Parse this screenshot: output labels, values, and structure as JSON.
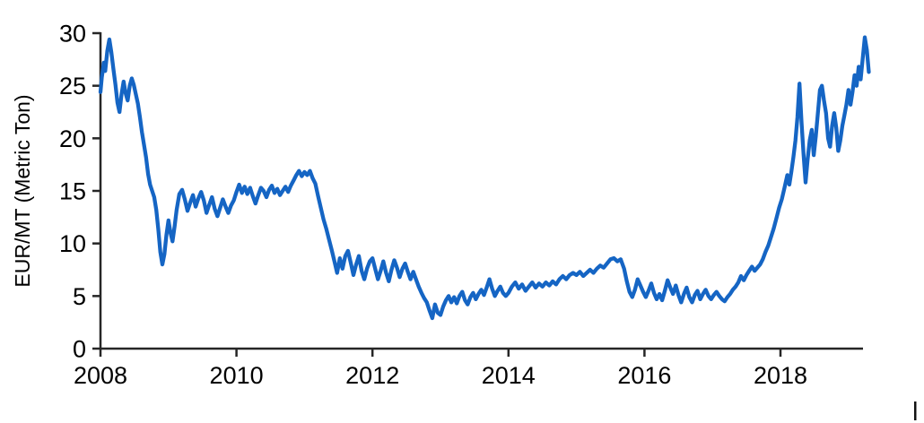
{
  "chart_data": {
    "type": "line",
    "title": "",
    "xlabel": "",
    "ylabel": "EUR/MT (Metric Ton)",
    "x_ticks": [
      2008,
      2010,
      2012,
      2014,
      2016,
      2018
    ],
    "y_ticks": [
      0,
      5,
      10,
      15,
      20,
      25,
      30
    ],
    "xlim": [
      2008,
      2019.35
    ],
    "ylim": [
      0,
      30
    ],
    "grid": false,
    "legend_position": "none",
    "axis_color": "#262626",
    "tick_label_color": "#000000",
    "series": [
      {
        "name": "EUR/MT price",
        "color": "#1565c4",
        "points": [
          [
            2008.0,
            24.4
          ],
          [
            2008.02,
            25.8
          ],
          [
            2008.05,
            27.2
          ],
          [
            2008.07,
            26.4
          ],
          [
            2008.1,
            28.3
          ],
          [
            2008.13,
            29.4
          ],
          [
            2008.16,
            28.2
          ],
          [
            2008.19,
            26.6
          ],
          [
            2008.22,
            25.1
          ],
          [
            2008.25,
            23.4
          ],
          [
            2008.28,
            22.5
          ],
          [
            2008.31,
            24.2
          ],
          [
            2008.34,
            25.4
          ],
          [
            2008.37,
            24.3
          ],
          [
            2008.4,
            23.6
          ],
          [
            2008.43,
            25.0
          ],
          [
            2008.46,
            25.7
          ],
          [
            2008.49,
            25.1
          ],
          [
            2008.52,
            24.2
          ],
          [
            2008.55,
            23.3
          ],
          [
            2008.58,
            22.0
          ],
          [
            2008.61,
            20.6
          ],
          [
            2008.64,
            19.4
          ],
          [
            2008.67,
            18.2
          ],
          [
            2008.7,
            16.6
          ],
          [
            2008.73,
            15.6
          ],
          [
            2008.76,
            15.0
          ],
          [
            2008.79,
            14.4
          ],
          [
            2008.82,
            13.2
          ],
          [
            2008.85,
            11.4
          ],
          [
            2008.88,
            9.2
          ],
          [
            2008.91,
            8.0
          ],
          [
            2008.94,
            9.0
          ],
          [
            2008.97,
            10.8
          ],
          [
            2009.0,
            12.2
          ],
          [
            2009.03,
            11.0
          ],
          [
            2009.06,
            10.2
          ],
          [
            2009.09,
            11.6
          ],
          [
            2009.12,
            13.2
          ],
          [
            2009.16,
            14.7
          ],
          [
            2009.2,
            15.1
          ],
          [
            2009.24,
            14.2
          ],
          [
            2009.28,
            13.1
          ],
          [
            2009.32,
            13.9
          ],
          [
            2009.36,
            14.6
          ],
          [
            2009.4,
            13.5
          ],
          [
            2009.44,
            14.3
          ],
          [
            2009.48,
            14.9
          ],
          [
            2009.52,
            14.1
          ],
          [
            2009.56,
            12.9
          ],
          [
            2009.6,
            13.7
          ],
          [
            2009.64,
            14.4
          ],
          [
            2009.68,
            13.3
          ],
          [
            2009.72,
            12.6
          ],
          [
            2009.76,
            13.4
          ],
          [
            2009.8,
            14.2
          ],
          [
            2009.84,
            13.5
          ],
          [
            2009.88,
            12.9
          ],
          [
            2009.92,
            13.6
          ],
          [
            2009.96,
            14.1
          ],
          [
            2010.0,
            14.9
          ],
          [
            2010.04,
            15.6
          ],
          [
            2010.08,
            14.8
          ],
          [
            2010.12,
            15.4
          ],
          [
            2010.16,
            14.7
          ],
          [
            2010.2,
            15.3
          ],
          [
            2010.24,
            14.5
          ],
          [
            2010.28,
            13.8
          ],
          [
            2010.32,
            14.6
          ],
          [
            2010.36,
            15.3
          ],
          [
            2010.4,
            15.0
          ],
          [
            2010.44,
            14.4
          ],
          [
            2010.48,
            15.1
          ],
          [
            2010.52,
            15.5
          ],
          [
            2010.56,
            14.8
          ],
          [
            2010.6,
            15.2
          ],
          [
            2010.64,
            14.6
          ],
          [
            2010.68,
            15.0
          ],
          [
            2010.72,
            15.4
          ],
          [
            2010.76,
            14.9
          ],
          [
            2010.8,
            15.5
          ],
          [
            2010.84,
            16.0
          ],
          [
            2010.88,
            16.5
          ],
          [
            2010.92,
            16.9
          ],
          [
            2010.96,
            16.4
          ],
          [
            2011.0,
            16.8
          ],
          [
            2011.04,
            16.5
          ],
          [
            2011.08,
            16.9
          ],
          [
            2011.12,
            16.2
          ],
          [
            2011.16,
            15.7
          ],
          [
            2011.2,
            14.5
          ],
          [
            2011.24,
            13.4
          ],
          [
            2011.28,
            12.3
          ],
          [
            2011.32,
            11.4
          ],
          [
            2011.36,
            10.4
          ],
          [
            2011.4,
            9.4
          ],
          [
            2011.44,
            8.3
          ],
          [
            2011.48,
            7.2
          ],
          [
            2011.52,
            8.6
          ],
          [
            2011.56,
            7.6
          ],
          [
            2011.6,
            8.8
          ],
          [
            2011.64,
            9.3
          ],
          [
            2011.68,
            8.2
          ],
          [
            2011.72,
            7.0
          ],
          [
            2011.76,
            8.0
          ],
          [
            2011.8,
            8.8
          ],
          [
            2011.84,
            7.4
          ],
          [
            2011.88,
            6.6
          ],
          [
            2011.92,
            7.6
          ],
          [
            2011.96,
            8.3
          ],
          [
            2012.0,
            8.6
          ],
          [
            2012.04,
            7.6
          ],
          [
            2012.08,
            6.6
          ],
          [
            2012.12,
            7.4
          ],
          [
            2012.16,
            8.3
          ],
          [
            2012.2,
            7.2
          ],
          [
            2012.24,
            6.4
          ],
          [
            2012.28,
            7.5
          ],
          [
            2012.32,
            8.4
          ],
          [
            2012.36,
            7.7
          ],
          [
            2012.4,
            6.8
          ],
          [
            2012.44,
            7.6
          ],
          [
            2012.48,
            8.1
          ],
          [
            2012.52,
            7.3
          ],
          [
            2012.56,
            6.6
          ],
          [
            2012.6,
            7.3
          ],
          [
            2012.64,
            6.6
          ],
          [
            2012.68,
            5.9
          ],
          [
            2012.72,
            5.3
          ],
          [
            2012.76,
            4.8
          ],
          [
            2012.8,
            4.4
          ],
          [
            2012.84,
            3.6
          ],
          [
            2012.88,
            2.9
          ],
          [
            2012.92,
            4.2
          ],
          [
            2012.96,
            3.4
          ],
          [
            2013.0,
            3.2
          ],
          [
            2013.04,
            4.0
          ],
          [
            2013.08,
            4.6
          ],
          [
            2013.12,
            5.0
          ],
          [
            2013.16,
            4.4
          ],
          [
            2013.2,
            4.9
          ],
          [
            2013.24,
            4.3
          ],
          [
            2013.28,
            5.0
          ],
          [
            2013.32,
            5.4
          ],
          [
            2013.36,
            4.6
          ],
          [
            2013.4,
            4.2
          ],
          [
            2013.44,
            4.9
          ],
          [
            2013.48,
            5.3
          ],
          [
            2013.52,
            4.7
          ],
          [
            2013.56,
            5.2
          ],
          [
            2013.6,
            5.6
          ],
          [
            2013.64,
            5.1
          ],
          [
            2013.68,
            5.8
          ],
          [
            2013.72,
            6.6
          ],
          [
            2013.76,
            5.7
          ],
          [
            2013.8,
            5.0
          ],
          [
            2013.84,
            5.5
          ],
          [
            2013.88,
            5.9
          ],
          [
            2013.92,
            5.3
          ],
          [
            2013.96,
            5.0
          ],
          [
            2014.0,
            5.3
          ],
          [
            2014.05,
            5.9
          ],
          [
            2014.1,
            6.3
          ],
          [
            2014.15,
            5.7
          ],
          [
            2014.2,
            6.1
          ],
          [
            2014.25,
            5.5
          ],
          [
            2014.3,
            5.9
          ],
          [
            2014.35,
            6.3
          ],
          [
            2014.4,
            5.8
          ],
          [
            2014.45,
            6.2
          ],
          [
            2014.5,
            5.9
          ],
          [
            2014.55,
            6.3
          ],
          [
            2014.6,
            6.0
          ],
          [
            2014.65,
            6.4
          ],
          [
            2014.7,
            6.1
          ],
          [
            2014.75,
            6.6
          ],
          [
            2014.8,
            6.9
          ],
          [
            2014.85,
            6.6
          ],
          [
            2014.9,
            7.0
          ],
          [
            2014.95,
            7.2
          ],
          [
            2015.0,
            7.0
          ],
          [
            2015.05,
            7.3
          ],
          [
            2015.1,
            6.9
          ],
          [
            2015.15,
            7.2
          ],
          [
            2015.2,
            7.5
          ],
          [
            2015.25,
            7.2
          ],
          [
            2015.3,
            7.6
          ],
          [
            2015.35,
            7.9
          ],
          [
            2015.4,
            7.7
          ],
          [
            2015.45,
            8.1
          ],
          [
            2015.5,
            8.5
          ],
          [
            2015.55,
            8.6
          ],
          [
            2015.6,
            8.3
          ],
          [
            2015.65,
            8.5
          ],
          [
            2015.7,
            7.6
          ],
          [
            2015.74,
            6.4
          ],
          [
            2015.78,
            5.4
          ],
          [
            2015.82,
            4.9
          ],
          [
            2015.86,
            5.6
          ],
          [
            2015.9,
            6.6
          ],
          [
            2015.94,
            6.0
          ],
          [
            2015.98,
            5.4
          ],
          [
            2016.02,
            4.9
          ],
          [
            2016.06,
            5.5
          ],
          [
            2016.1,
            6.2
          ],
          [
            2016.14,
            5.3
          ],
          [
            2016.18,
            4.7
          ],
          [
            2016.22,
            5.2
          ],
          [
            2016.26,
            4.6
          ],
          [
            2016.3,
            5.5
          ],
          [
            2016.34,
            6.5
          ],
          [
            2016.38,
            5.8
          ],
          [
            2016.42,
            5.2
          ],
          [
            2016.46,
            6.0
          ],
          [
            2016.5,
            5.1
          ],
          [
            2016.54,
            4.4
          ],
          [
            2016.58,
            5.2
          ],
          [
            2016.62,
            5.8
          ],
          [
            2016.66,
            4.9
          ],
          [
            2016.7,
            4.4
          ],
          [
            2016.74,
            5.1
          ],
          [
            2016.78,
            5.5
          ],
          [
            2016.82,
            4.7
          ],
          [
            2016.86,
            5.2
          ],
          [
            2016.9,
            5.6
          ],
          [
            2016.94,
            5.0
          ],
          [
            2016.98,
            4.7
          ],
          [
            2017.02,
            5.1
          ],
          [
            2017.06,
            5.4
          ],
          [
            2017.1,
            5.0
          ],
          [
            2017.14,
            4.7
          ],
          [
            2017.18,
            4.5
          ],
          [
            2017.22,
            4.9
          ],
          [
            2017.26,
            5.2
          ],
          [
            2017.3,
            5.6
          ],
          [
            2017.34,
            5.9
          ],
          [
            2017.38,
            6.3
          ],
          [
            2017.42,
            6.9
          ],
          [
            2017.46,
            6.5
          ],
          [
            2017.5,
            7.0
          ],
          [
            2017.54,
            7.4
          ],
          [
            2017.58,
            7.8
          ],
          [
            2017.62,
            7.4
          ],
          [
            2017.66,
            7.7
          ],
          [
            2017.7,
            8.0
          ],
          [
            2017.74,
            8.5
          ],
          [
            2017.78,
            9.2
          ],
          [
            2017.82,
            9.8
          ],
          [
            2017.86,
            10.6
          ],
          [
            2017.9,
            11.4
          ],
          [
            2017.94,
            12.4
          ],
          [
            2017.98,
            13.4
          ],
          [
            2018.02,
            14.2
          ],
          [
            2018.06,
            15.3
          ],
          [
            2018.1,
            16.5
          ],
          [
            2018.13,
            15.6
          ],
          [
            2018.16,
            16.8
          ],
          [
            2018.19,
            18.2
          ],
          [
            2018.22,
            19.8
          ],
          [
            2018.25,
            22.0
          ],
          [
            2018.28,
            25.2
          ],
          [
            2018.31,
            21.5
          ],
          [
            2018.34,
            18.4
          ],
          [
            2018.37,
            15.8
          ],
          [
            2018.4,
            18.0
          ],
          [
            2018.43,
            19.8
          ],
          [
            2018.46,
            20.8
          ],
          [
            2018.49,
            18.4
          ],
          [
            2018.52,
            20.2
          ],
          [
            2018.55,
            22.4
          ],
          [
            2018.58,
            24.6
          ],
          [
            2018.61,
            25.0
          ],
          [
            2018.64,
            23.6
          ],
          [
            2018.67,
            22.4
          ],
          [
            2018.7,
            20.0
          ],
          [
            2018.73,
            19.2
          ],
          [
            2018.76,
            21.2
          ],
          [
            2018.79,
            22.4
          ],
          [
            2018.82,
            21.0
          ],
          [
            2018.85,
            18.8
          ],
          [
            2018.88,
            19.8
          ],
          [
            2018.91,
            21.2
          ],
          [
            2018.94,
            22.2
          ],
          [
            2018.97,
            23.2
          ],
          [
            2019.0,
            24.6
          ],
          [
            2019.03,
            23.2
          ],
          [
            2019.06,
            24.4
          ],
          [
            2019.09,
            26.0
          ],
          [
            2019.12,
            25.0
          ],
          [
            2019.15,
            26.8
          ],
          [
            2019.18,
            25.6
          ],
          [
            2019.21,
            27.6
          ],
          [
            2019.24,
            29.6
          ],
          [
            2019.27,
            28.4
          ],
          [
            2019.3,
            26.3
          ]
        ]
      }
    ]
  }
}
